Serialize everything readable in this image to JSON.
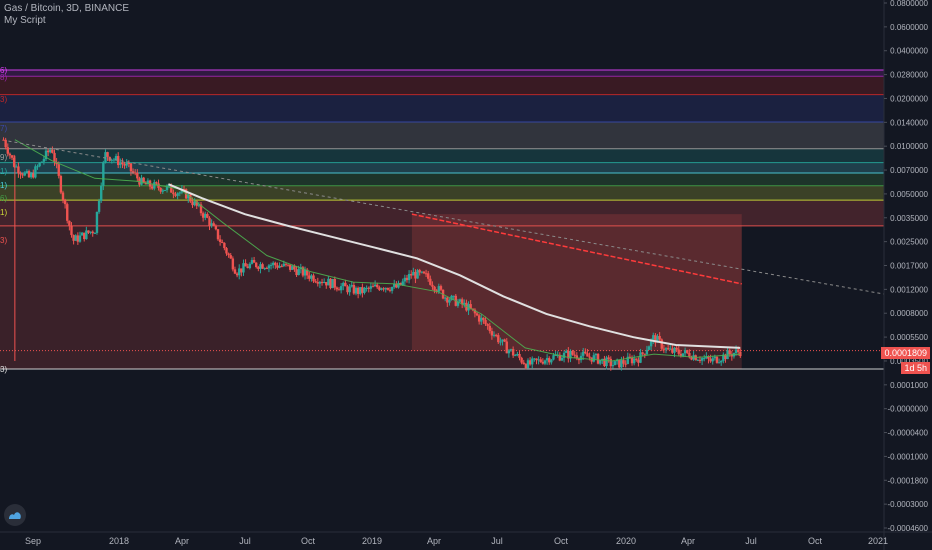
{
  "legend": {
    "symbol_line": "Gas / Bitcoin, 3D, BINANCE",
    "script_line": "My Script"
  },
  "price_axis": {
    "ticks": [
      "0.0800000",
      "0.0600000",
      "0.0400000",
      "0.0280000",
      "0.0200000",
      "0.0140000",
      "0.0100000",
      "0.0070000",
      "0.0050000",
      "0.0035000",
      "0.0025000",
      "0.0017000",
      "0.0012000",
      "0.0008000",
      "0.0005500",
      "0.0003500",
      "0.0001000",
      "-0.0000000",
      "-0.0000400",
      "-0.0001000",
      "-0.0001800",
      "-0.0003000",
      "-0.0004600"
    ],
    "current_price": "0.0001809",
    "countdown": "1d 5h"
  },
  "time_axis": {
    "ticks": [
      "Sep",
      "2018",
      "Apr",
      "Jul",
      "Oct",
      "2019",
      "Apr",
      "Jul",
      "Oct",
      "2020",
      "Apr",
      "Jul",
      "Oct",
      "2021"
    ]
  },
  "left_edge_labels": [
    "6)",
    "8)",
    "3)",
    "7)",
    "9)",
    "1)",
    "1)",
    "6)",
    "1)",
    "3)",
    "3)"
  ],
  "colors": {
    "background": "#131722",
    "up": "#26a69a",
    "down": "#ef5350",
    "ma_long": "#e0e0e0",
    "ma_short": "#4caf50",
    "trend_red": "#ff3b3b",
    "price_tag_bg": "#ef5350"
  },
  "chart_data": {
    "type": "candlestick",
    "title": "Gas / Bitcoin, 3D, BINANCE",
    "xlabel": "",
    "ylabel": "",
    "scale": "log",
    "x_range": [
      "2017-08-20",
      "2021-01-20"
    ],
    "levels": [
      {
        "price": 0.028,
        "color": "#e040fb"
      },
      {
        "price": 0.025,
        "color": "#9c27b0"
      },
      {
        "price": 0.018,
        "color": "#c62828"
      },
      {
        "price": 0.011,
        "color": "#3949ab"
      },
      {
        "price": 0.0068,
        "color": "#9e9e9e"
      },
      {
        "price": 0.0053,
        "color": "#26a69a"
      },
      {
        "price": 0.0044,
        "color": "#4dd0e1"
      },
      {
        "price": 0.0035,
        "color": "#43a047"
      },
      {
        "price": 0.0027,
        "color": "#cddc39"
      },
      {
        "price": 0.0017,
        "color": "#ef5350"
      },
      {
        "price": 0.00013,
        "color": "#e0e0e0"
      }
    ],
    "series": [
      {
        "name": "price",
        "dates": [
          "2017-08-25",
          "2017-09-10",
          "2017-10-01",
          "2017-11-01",
          "2017-12-01",
          "2018-01-01",
          "2018-01-15",
          "2018-02-15",
          "2018-03-10",
          "2018-04-15",
          "2018-05-10",
          "2018-06-10",
          "2018-07-05",
          "2018-07-20",
          "2018-08-10",
          "2018-09-10",
          "2018-10-05",
          "2018-11-05",
          "2018-12-10",
          "2019-01-10",
          "2019-02-10",
          "2019-03-05",
          "2019-03-25",
          "2019-04-15",
          "2019-05-10",
          "2019-06-10",
          "2019-07-05",
          "2019-08-05",
          "2019-09-05",
          "2019-10-05",
          "2019-11-05",
          "2019-12-05",
          "2020-01-05",
          "2020-02-10",
          "2020-03-01",
          "2020-03-20",
          "2020-04-20",
          "2020-05-20",
          "2020-06-15",
          "2020-07-03"
        ],
        "values": [
          0.008,
          0.005,
          0.004,
          0.007,
          0.0013,
          0.0016,
          0.0062,
          0.005,
          0.0036,
          0.0033,
          0.003,
          0.0019,
          0.0011,
          0.00075,
          0.00085,
          0.00085,
          0.0008,
          0.00068,
          0.00058,
          0.00052,
          0.00058,
          0.00056,
          0.00072,
          0.00068,
          0.00048,
          0.0004,
          0.0003,
          0.00019,
          0.00014,
          0.00016,
          0.00017,
          0.00016,
          0.00014,
          0.00016,
          0.00023,
          0.00018,
          0.00017,
          0.00015,
          0.00017,
          0.00018
        ]
      },
      {
        "name": "long_ma",
        "dates": [
          "2018-04-15",
          "2018-06-01",
          "2018-08-01",
          "2018-10-01",
          "2018-12-01",
          "2019-02-01",
          "2019-04-01",
          "2019-06-01",
          "2019-08-01",
          "2019-10-01",
          "2019-12-01",
          "2020-02-01",
          "2020-04-01",
          "2020-07-01"
        ],
        "values": [
          0.0036,
          0.0028,
          0.0021,
          0.0017,
          0.0014,
          0.00115,
          0.00095,
          0.0007,
          0.00048,
          0.00035,
          0.00028,
          0.00023,
          0.0002,
          0.00019
        ]
      },
      {
        "name": "short_ma",
        "dates": [
          "2017-09-10",
          "2017-11-01",
          "2018-01-01",
          "2018-03-01",
          "2018-05-01",
          "2018-07-01",
          "2018-09-01",
          "2018-11-01",
          "2019-01-01",
          "2019-03-01",
          "2019-05-01",
          "2019-07-01",
          "2019-09-01",
          "2019-11-01",
          "2020-01-01",
          "2020-03-01",
          "2020-05-01",
          "2020-07-01"
        ],
        "values": [
          0.008,
          0.0055,
          0.004,
          0.0038,
          0.0033,
          0.0018,
          0.001,
          0.00075,
          0.00062,
          0.0006,
          0.00052,
          0.00035,
          0.00019,
          0.00016,
          0.00015,
          0.00017,
          0.00016,
          0.00017
        ]
      }
    ],
    "trendlines": [
      {
        "from": {
          "date": "2017-09-01",
          "price": 0.0078
        },
        "to": {
          "date": "2021-01-20",
          "price": 0.0005
        },
        "style": "dashed",
        "color": "#8a8a8a"
      },
      {
        "from": {
          "date": "2019-03-25",
          "price": 0.0021
        },
        "to": {
          "date": "2020-07-03",
          "price": 0.0006
        },
        "style": "dashed",
        "color": "#ff3b3b"
      }
    ],
    "regions": [
      {
        "from_date": "2017-08-20",
        "to_date": "2020-07-03",
        "price_low": 0.00013,
        "price_high": 0.0017,
        "color": "#ef5350"
      },
      {
        "from_date": "2019-03-25",
        "to_date": "2020-07-03",
        "price_low": 0.00018,
        "price_high": 0.0021,
        "color": "#ef5350"
      }
    ]
  }
}
